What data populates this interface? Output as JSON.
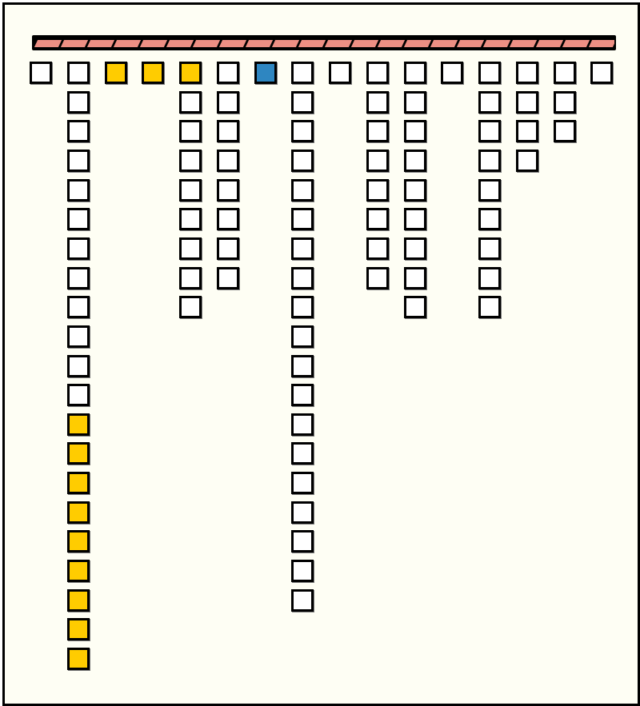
{
  "colors": {
    "background": "#fefef4",
    "bar": "#ee8f84",
    "white": "#ffffff",
    "yellow": "#ffcc00",
    "blue": "#2e86c1"
  },
  "bar_segments": 22,
  "columns": [
    [
      "white"
    ],
    [
      "white",
      "white",
      "white",
      "white",
      "white",
      "white",
      "white",
      "white",
      "white",
      "white",
      "white",
      "white",
      "yellow",
      "yellow",
      "yellow",
      "yellow",
      "yellow",
      "yellow",
      "yellow",
      "yellow",
      "yellow"
    ],
    [
      "yellow"
    ],
    [
      "yellow"
    ],
    [
      "yellow",
      "white",
      "white",
      "white",
      "white",
      "white",
      "white",
      "white",
      "white"
    ],
    [
      "white",
      "white",
      "white",
      "white",
      "white",
      "white",
      "white",
      "white"
    ],
    [
      "blue"
    ],
    [
      "white",
      "white",
      "white",
      "white",
      "white",
      "white",
      "white",
      "white",
      "white",
      "white",
      "white",
      "white",
      "white",
      "white",
      "white",
      "white",
      "white",
      "white",
      "white"
    ],
    [
      "white"
    ],
    [
      "white",
      "white",
      "white",
      "white",
      "white",
      "white",
      "white",
      "white"
    ],
    [
      "white",
      "white",
      "white",
      "white",
      "white",
      "white",
      "white",
      "white",
      "white"
    ],
    [
      "white"
    ],
    [
      "white",
      "white",
      "white",
      "white",
      "white",
      "white",
      "white",
      "white",
      "white"
    ],
    [
      "white",
      "white",
      "white",
      "white"
    ],
    [
      "white",
      "white",
      "white"
    ],
    [
      "white"
    ]
  ]
}
